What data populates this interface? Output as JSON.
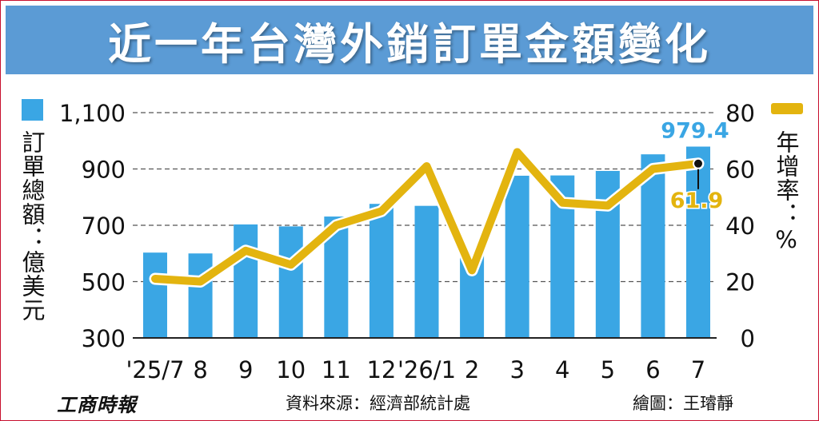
{
  "title": "近一年台灣外銷訂單金額變化",
  "colors": {
    "title_bg": "#5b9bd5",
    "bar": "#3aa6e4",
    "line": "#e3b40f",
    "value_label_bar": "#3aa6e4",
    "value_label_line": "#e3b40f",
    "grid": "#555555"
  },
  "legend": {
    "bar_label": "訂單總額：億美元",
    "line_label": "年增率：%"
  },
  "footer": {
    "publisher": "工商時報",
    "source": "資料來源：經濟部統計處",
    "credit": "繪圖：王璿靜"
  },
  "chart_data": {
    "type": "bar",
    "categories": [
      "'25/7",
      "8",
      "9",
      "10",
      "11",
      "12",
      "'26/1",
      "2",
      "3",
      "4",
      "5",
      "6",
      "7"
    ],
    "series": [
      {
        "kind": "bar",
        "axis": "left",
        "values": [
          603,
          600,
          703,
          696,
          731,
          776,
          769,
          594,
          876,
          877,
          893,
          952,
          979.4
        ]
      },
      {
        "kind": "line",
        "axis": "right",
        "values": [
          21,
          20,
          31,
          26,
          40,
          45,
          61,
          24,
          66,
          48,
          47,
          60,
          61.9
        ]
      }
    ],
    "y_left": {
      "ylim": [
        300,
        1100
      ],
      "ticks": [
        300,
        500,
        700,
        900,
        1100
      ],
      "tick_labels": [
        "300",
        "500",
        "700",
        "900",
        "1,100"
      ]
    },
    "y_right": {
      "ylim": [
        0,
        80
      ],
      "ticks": [
        0,
        20,
        40,
        60,
        80
      ],
      "tick_labels": [
        "0",
        "20",
        "40",
        "60",
        "80"
      ]
    },
    "annotations": [
      {
        "series": "bar",
        "index": 12,
        "text": "979.4"
      },
      {
        "series": "line",
        "index": 12,
        "text": "61.9"
      }
    ],
    "grid": "dashed horizontal",
    "legend_placement": "left and right of plot"
  }
}
